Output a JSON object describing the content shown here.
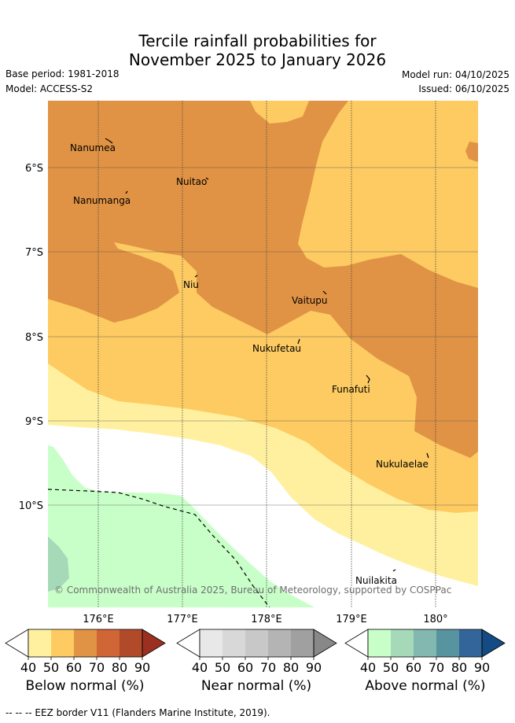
{
  "title_line1": "Tercile rainfall probabilities for",
  "title_line2": "November 2025 to January 2026",
  "base_period": "Base period: 1981-2018",
  "model": "Model: ACCESS-S2",
  "model_run": "Model run: 04/10/2025",
  "issued": "Issued: 06/10/2025",
  "lat_labels": [
    "6°S",
    "7°S",
    "8°S",
    "9°S",
    "10°S"
  ],
  "lon_labels": [
    "176°E",
    "177°E",
    "178°E",
    "179°E",
    "180°"
  ],
  "places": {
    "nanumea": "Nanumea",
    "nuitao": "Nuitao",
    "nanumanga": "Nanumanga",
    "niu": "Niu",
    "vaitupu": "Vaitupu",
    "nukufetau": "Nukufetau",
    "funafuti": "Funafuti",
    "nukulaelae": "Nukulaelae",
    "nuilakita": "Nuilakita"
  },
  "copyright": "© Commonwealth of Australia 2025, Bureau of Meteorology, supported by COSPPac",
  "colorbars": [
    {
      "label": "Below normal (%)",
      "colors": [
        "#fff0a0",
        "#fdcb62",
        "#e09345",
        "#d06535",
        "#b04a28",
        "#9c3020"
      ]
    },
    {
      "label": "Near normal (%)",
      "colors": [
        "#e8e8e8",
        "#d8d8d8",
        "#c8c8c8",
        "#b4b4b4",
        "#a0a0a0",
        "#888888"
      ]
    },
    {
      "label": "Above normal (%)",
      "colors": [
        "#c8ffc8",
        "#a6d9b8",
        "#82b8b0",
        "#5893a0",
        "#33659a",
        "#144b84"
      ]
    }
  ],
  "tick_values": [
    "40",
    "50",
    "60",
    "70",
    "80",
    "90"
  ],
  "footer": "-- -- -- EEZ border V11 (Flanders Marine Institute, 2019)."
}
